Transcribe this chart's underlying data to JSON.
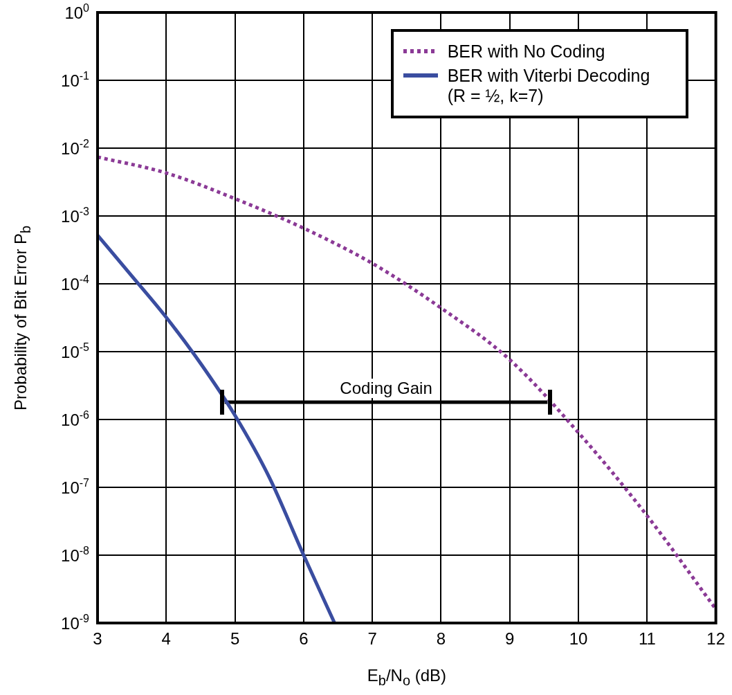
{
  "chart_data": {
    "type": "line",
    "xlabel": "E$_{b}$/N$_{o}$ (dB)",
    "ylabel": "Probability of Bit Error P$_{b}$",
    "log": "y",
    "grid": true,
    "legend": "top right",
    "xlim": [
      3,
      12
    ],
    "xticks": [
      3,
      4,
      5,
      6,
      7,
      8,
      9,
      10,
      11,
      12
    ],
    "ylim": [
      1e-09,
      1
    ],
    "yticks": [
      {
        "value": 1e-09,
        "label": "10$^{-9}$"
      },
      {
        "value": 1e-08,
        "label": "10$^{-8}$"
      },
      {
        "value": 1e-07,
        "label": "10$^{-7}$"
      },
      {
        "value": 1e-06,
        "label": "10$^{-6}$"
      },
      {
        "value": 1e-05,
        "label": "10$^{-5}$"
      },
      {
        "value": 0.0001,
        "label": "10$^{-4}$"
      },
      {
        "value": 0.001,
        "label": "10$^{-3}$"
      },
      {
        "value": 0.01,
        "label": "10$^{-2}$"
      },
      {
        "value": 0.1,
        "label": "10$^{-1}$"
      },
      {
        "value": 1,
        "label": "10$^{0}$"
      }
    ],
    "series": [
      {
        "name": "BER with No Coding",
        "color": "#8b3a96",
        "line_style": "dotted",
        "x": [
          3,
          4,
          5,
          6,
          7,
          8,
          9,
          10,
          11,
          12
        ],
        "values": [
          0.0074,
          0.0043,
          0.0018,
          0.00066,
          0.0002,
          4.4e-05,
          7.6e-06,
          6.4e-07,
          3.8e-08,
          1.6e-09
        ]
      },
      {
        "name": "BER with Viterbi Decoding (R = ½, k=7)",
        "color": "#3a4da0",
        "line_style": "solid",
        "x": [
          3,
          3.5,
          4,
          4.5,
          5,
          5.5,
          6,
          6.45
        ],
        "values": [
          0.00052,
          0.00013,
          3.2e-05,
          6.7e-06,
          1.15e-06,
          1.4e-07,
          1e-08,
          1e-09
        ]
      },
      {
        "color": "#000000",
        "line_style": "solid",
        "x": [
          4.85,
          9.55
        ],
        "values": [
          1.8e-06,
          1.8e-06
        ]
      }
    ],
    "annotations": [
      {
        "text": "Coding Gain",
        "x": 7.2,
        "y": 1.8e-06
      }
    ]
  }
}
